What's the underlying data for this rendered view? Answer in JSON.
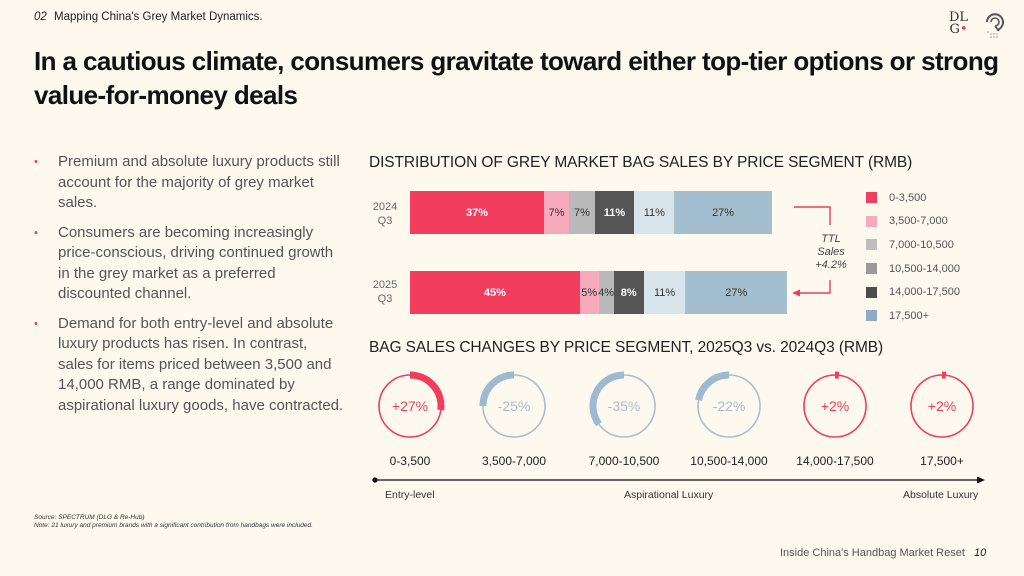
{
  "header": {
    "section_number": "02",
    "section_title": "Mapping China's Grey Market Dynamics.",
    "logo_text_top": "DL",
    "logo_text_bottom": "G",
    "logo_dot": "•"
  },
  "title": "In a cautious climate, consumers gravitate toward either top-tier options or strong value-for-money deals",
  "bullets": [
    "Premium and absolute luxury products still account for the majority of grey market sales.",
    "Consumers are becoming increasingly price-conscious, driving continued growth in the grey market as a preferred discounted channel.",
    "Demand for both entry-level and absolute luxury products has risen. In contrast, sales for items priced between 3,500 and 14,000 RMB, a range dominated by aspirational luxury goods, have contracted."
  ],
  "bullet_marker": "•",
  "annotation": {
    "line1": "TTL",
    "line2": "Sales",
    "line3": "+4.2%"
  },
  "colors": {
    "accent": "#f23d5e",
    "seg_colors": [
      "#f23d5e",
      "#f7aabb",
      "#b9b9b9",
      "#555555",
      "#d8e4ec",
      "#a3bfcf"
    ],
    "legend_colors": [
      "#f23d5e",
      "#f7aabb",
      "#bdbdbd",
      "#9a9a9a",
      "#4c4c4c",
      "#8eaac6"
    ],
    "gauge_neg": "#9dbad1",
    "gauge_neg_ring": "#aabfcd"
  },
  "chart_data": [
    {
      "type": "bar",
      "orientation": "horizontal-stacked-100",
      "title": "DISTRIBUTION OF GREY MARKET BAG SALES BY PRICE SEGMENT (RMB)",
      "categories": [
        "2024 Q3",
        "2025 Q3"
      ],
      "category_labels": [
        [
          "2024",
          "Q3"
        ],
        [
          "2025",
          "Q3"
        ]
      ],
      "legend": [
        "0-3,500",
        "3,500-7,000",
        "7,000-10,500",
        "10,500-14,000",
        "14,000-17,500",
        "17,500+"
      ],
      "legend_position": "right",
      "series": [
        {
          "name": "0-3,500",
          "values": [
            37,
            45
          ]
        },
        {
          "name": "3,500-7,000",
          "values": [
            7,
            5
          ]
        },
        {
          "name": "7,000-10,500",
          "values": [
            7,
            4
          ]
        },
        {
          "name": "10,500-14,000",
          "values": [
            11,
            8
          ]
        },
        {
          "name": "14,000-17,500",
          "values": [
            11,
            11
          ]
        },
        {
          "name": "17,500+",
          "values": [
            27,
            27
          ]
        }
      ],
      "segment_values_2024": [
        37,
        7,
        7,
        11,
        11,
        27
      ],
      "segment_values_2025": [
        45,
        5,
        4,
        8,
        11,
        27
      ],
      "data_labels_2024": [
        "37%",
        "7%",
        "7%",
        "11%",
        "11%",
        "27%"
      ],
      "data_labels_2025": [
        "45%",
        "5%",
        "4%",
        "8%",
        "11%",
        "27%"
      ],
      "total_sales_change": "+4.2%",
      "ttl_sales_relative": [
        1.0,
        1.042
      ]
    },
    {
      "type": "pie",
      "subtype": "gauge",
      "title": "BAG SALES CHANGES BY PRICE SEGMENT, 2025Q3 vs. 2024Q3 (RMB)",
      "categories": [
        "0-3,500",
        "3,500-7,000",
        "7,000-10,500",
        "10,500-14,000",
        "14,000-17,500",
        "17,500+"
      ],
      "values": [
        27,
        -25,
        -35,
        -22,
        2,
        2
      ],
      "labels": [
        "+27%",
        "-25%",
        "-35%",
        "-22%",
        "+2%",
        "+2%"
      ],
      "axis": {
        "labels": [
          "Entry-level",
          "Aspirational Luxury",
          "Absolute Luxury"
        ]
      }
    }
  ],
  "footer": {
    "source": "Source: SPECTRUM (DLG & Re-Hub)",
    "note": "Note: 21 luxury and premium brands with a significant contribution from handbags were included.",
    "deck_title": "Inside China's Handbag Market Reset",
    "page_number": "10"
  }
}
